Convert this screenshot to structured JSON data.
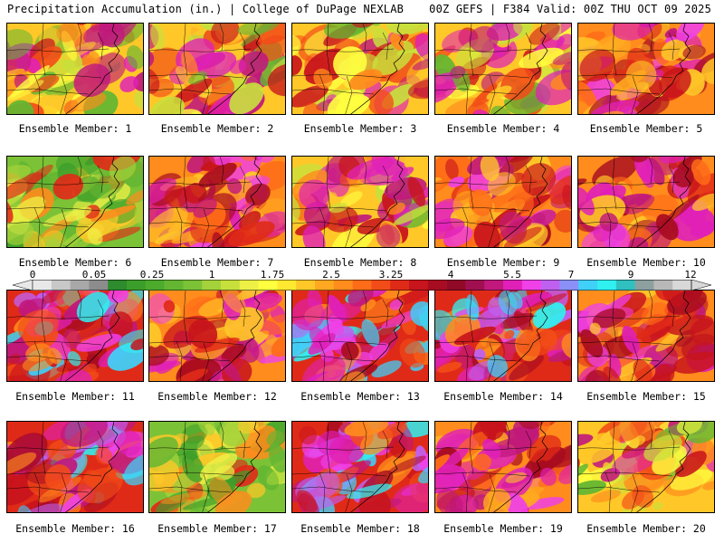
{
  "header": {
    "left": "Precipitation Accumulation (in.) | College of DuPage NEXLAB",
    "right": "00Z GEFS | F384 Valid: 00Z THU OCT 09 2025"
  },
  "colorbar": {
    "labels": [
      "0",
      "0.05",
      "0.25",
      "1",
      "1.75",
      "2.5",
      "3.25",
      "4",
      "5.5",
      "7",
      "9",
      "12"
    ],
    "colors": [
      "#e8e8e8",
      "#c8c8c8",
      "#a8a8a8",
      "#8c8c8c",
      "#2e8b2e",
      "#3c9e2a",
      "#4caa2c",
      "#64b632",
      "#7cc236",
      "#a4d23a",
      "#c8e03c",
      "#eef046",
      "#ffff40",
      "#ffe830",
      "#ffc828",
      "#ffa820",
      "#ff8c1c",
      "#ff6c18",
      "#f24c18",
      "#e02a18",
      "#c8141c",
      "#a80c20",
      "#900a28",
      "#a01050",
      "#c0187c",
      "#e020b8",
      "#f040e8",
      "#c060f0",
      "#8a90f8",
      "#40d0f8",
      "#30f0f0",
      "#30c0c0",
      "#8ca0a0",
      "#b8b8b8",
      "#d8d8d8"
    ]
  },
  "members": [
    {
      "label": "Ensemble Member: 1",
      "theme": "moderate"
    },
    {
      "label": "Ensemble Member: 2",
      "theme": "moderate"
    },
    {
      "label": "Ensemble Member: 3",
      "theme": "moderate"
    },
    {
      "label": "Ensemble Member: 4",
      "theme": "moderate"
    },
    {
      "label": "Ensemble Member: 5",
      "theme": "wet"
    },
    {
      "label": "Ensemble Member: 6",
      "theme": "dry"
    },
    {
      "label": "Ensemble Member: 7",
      "theme": "wet"
    },
    {
      "label": "Ensemble Member: 8",
      "theme": "moderate"
    },
    {
      "label": "Ensemble Member: 9",
      "theme": "wet"
    },
    {
      "label": "Ensemble Member: 10",
      "theme": "wet"
    },
    {
      "label": "Ensemble Member: 11",
      "theme": "verywet"
    },
    {
      "label": "Ensemble Member: 12",
      "theme": "wet"
    },
    {
      "label": "Ensemble Member: 13",
      "theme": "verywet"
    },
    {
      "label": "Ensemble Member: 14",
      "theme": "verywet"
    },
    {
      "label": "Ensemble Member: 15",
      "theme": "wet"
    },
    {
      "label": "Ensemble Member: 16",
      "theme": "verywet"
    },
    {
      "label": "Ensemble Member: 17",
      "theme": "dry"
    },
    {
      "label": "Ensemble Member: 18",
      "theme": "verywet"
    },
    {
      "label": "Ensemble Member: 19",
      "theme": "wet"
    },
    {
      "label": "Ensemble Member: 20",
      "theme": "moderate"
    }
  ]
}
